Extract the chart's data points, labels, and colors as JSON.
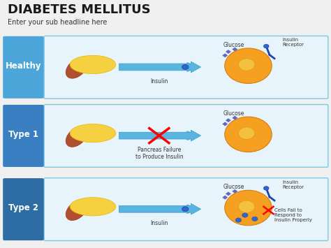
{
  "title": "DIABETES MELLITUS",
  "subtitle": "Enter your sub headline here",
  "background_color": "#f0f0f0",
  "title_color": "#1a1a1a",
  "subtitle_color": "#333333",
  "rows": [
    {
      "label": "Healthy",
      "label_bg": "#4da6d9",
      "label_color": "#ffffff",
      "row_bg": "#e8f4fb",
      "row_border": "#7ec8e3",
      "arrow_color": "#5ab4e0",
      "arrow_blocked": false,
      "glucose_label": "Glucose",
      "arrow_label": "Insulin",
      "right_label": "Insulin\nReceptor",
      "bottom_label": ""
    },
    {
      "label": "Type 1",
      "label_bg": "#3a7fc1",
      "label_color": "#ffffff",
      "row_bg": "#e8f4fb",
      "row_border": "#7ec8e3",
      "arrow_color": "#5ab4e0",
      "arrow_blocked": true,
      "glucose_label": "Glucose",
      "arrow_label": "Pancreas Failure\nto Produce Insulin",
      "right_label": "",
      "bottom_label": ""
    },
    {
      "label": "Type 2",
      "label_bg": "#2e6da4",
      "label_color": "#ffffff",
      "row_bg": "#e8f4fb",
      "row_border": "#7ec8e3",
      "arrow_color": "#5ab4e0",
      "arrow_blocked": false,
      "glucose_label": "Glucose",
      "arrow_label": "Insulin",
      "right_label": "Insulin\nReceptor",
      "bottom_label": "Cells Fail to\nRespond to\nInsulin Properly"
    }
  ]
}
